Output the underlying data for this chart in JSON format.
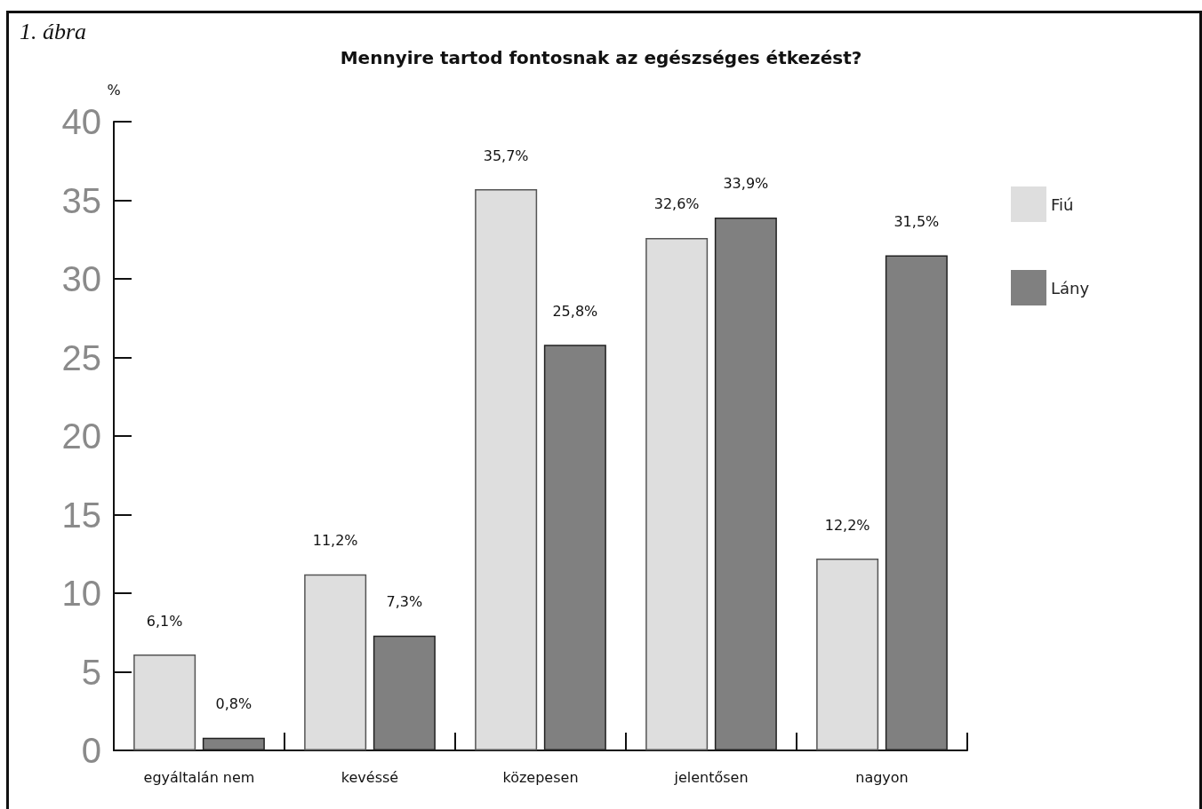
{
  "chart_data": {
    "type": "bar",
    "title": "Mennyire tartod fontosnak az egészséges étkezést?",
    "ylabel": "%",
    "annotations": [
      "1. ábra"
    ],
    "categories": [
      "egyáltalán nem",
      "kevéssé",
      "közepesen",
      "jelentősen",
      "nagyon"
    ],
    "series": [
      {
        "name": "Fiú",
        "color": "#dedede",
        "values": [
          6.1,
          11.2,
          35.7,
          32.6,
          12.2
        ],
        "value_labels": [
          "6,1%",
          "11,2%",
          "35,7%",
          "32,6%",
          "12,2%"
        ]
      },
      {
        "name": "Lány",
        "color": "#808080",
        "values": [
          0.8,
          7.3,
          25.8,
          33.9,
          31.5
        ],
        "value_labels": [
          "0,8%",
          "7,3%",
          "25,8%",
          "33,9%",
          "31,5%"
        ]
      }
    ],
    "ylim": [
      0,
      40
    ],
    "yticks": [
      0,
      5,
      10,
      15,
      20,
      25,
      30,
      35,
      40
    ],
    "grid": false,
    "legend": "right"
  }
}
